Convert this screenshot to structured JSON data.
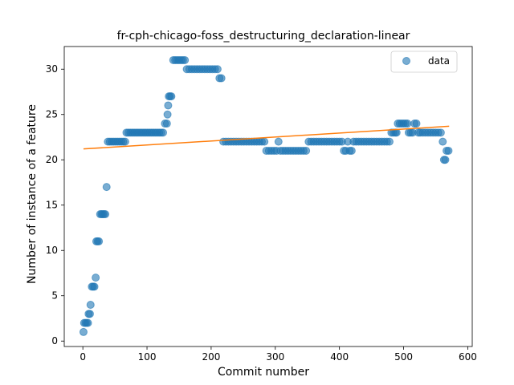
{
  "chart_data": {
    "type": "scatter",
    "title": "fr-cph-chicago-foss_destructuring_declaration-linear",
    "xlabel": "Commit number",
    "ylabel": "Number of instance of a feature",
    "xlim": [
      -29,
      607
    ],
    "ylim": [
      -0.6,
      32.5
    ],
    "xticks": [
      0,
      100,
      200,
      300,
      400,
      500,
      600
    ],
    "yticks": [
      0,
      5,
      10,
      15,
      20,
      25,
      30
    ],
    "legend": {
      "label": "data",
      "position": "top-right"
    },
    "colors": {
      "points": "#1f77b4",
      "fit": "#ff7f0e"
    },
    "series": [
      {
        "name": "data",
        "kind": "scatter",
        "points": [
          [
            1,
            1
          ],
          [
            2,
            2
          ],
          [
            4,
            2
          ],
          [
            6,
            2
          ],
          [
            8,
            2
          ],
          [
            9,
            3
          ],
          [
            11,
            3
          ],
          [
            12,
            4
          ],
          [
            14,
            6
          ],
          [
            16,
            6
          ],
          [
            18,
            6
          ],
          [
            20,
            7
          ],
          [
            21,
            11
          ],
          [
            23,
            11
          ],
          [
            25,
            11
          ],
          [
            27,
            14
          ],
          [
            29,
            14
          ],
          [
            31,
            14
          ],
          [
            33,
            14
          ],
          [
            35,
            14
          ],
          [
            37,
            17
          ],
          [
            39,
            22
          ],
          [
            42,
            22
          ],
          [
            45,
            22
          ],
          [
            48,
            22
          ],
          [
            51,
            22
          ],
          [
            54,
            22
          ],
          [
            57,
            22
          ],
          [
            60,
            22
          ],
          [
            63,
            22
          ],
          [
            66,
            22
          ],
          [
            68,
            23
          ],
          [
            71,
            23
          ],
          [
            74,
            23
          ],
          [
            77,
            23
          ],
          [
            80,
            23
          ],
          [
            83,
            23
          ],
          [
            86,
            23
          ],
          [
            89,
            23
          ],
          [
            92,
            23
          ],
          [
            95,
            23
          ],
          [
            98,
            23
          ],
          [
            101,
            23
          ],
          [
            104,
            23
          ],
          [
            107,
            23
          ],
          [
            110,
            23
          ],
          [
            113,
            23
          ],
          [
            116,
            23
          ],
          [
            119,
            23
          ],
          [
            122,
            23
          ],
          [
            125,
            23
          ],
          [
            128,
            24
          ],
          [
            131,
            24
          ],
          [
            132,
            25
          ],
          [
            133,
            26
          ],
          [
            134,
            27
          ],
          [
            136,
            27
          ],
          [
            138,
            27
          ],
          [
            141,
            31
          ],
          [
            144,
            31
          ],
          [
            147,
            31
          ],
          [
            150,
            31
          ],
          [
            153,
            31
          ],
          [
            156,
            31
          ],
          [
            159,
            31
          ],
          [
            162,
            30
          ],
          [
            166,
            30
          ],
          [
            170,
            30
          ],
          [
            174,
            30
          ],
          [
            178,
            30
          ],
          [
            182,
            30
          ],
          [
            186,
            30
          ],
          [
            190,
            30
          ],
          [
            194,
            30
          ],
          [
            198,
            30
          ],
          [
            202,
            30
          ],
          [
            206,
            30
          ],
          [
            210,
            30
          ],
          [
            213,
            29
          ],
          [
            216,
            29
          ],
          [
            219,
            22
          ],
          [
            223,
            22
          ],
          [
            227,
            22
          ],
          [
            231,
            22
          ],
          [
            235,
            22
          ],
          [
            239,
            22
          ],
          [
            243,
            22
          ],
          [
            247,
            22
          ],
          [
            251,
            22
          ],
          [
            255,
            22
          ],
          [
            259,
            22
          ],
          [
            263,
            22
          ],
          [
            267,
            22
          ],
          [
            271,
            22
          ],
          [
            275,
            22
          ],
          [
            279,
            22
          ],
          [
            283,
            22
          ],
          [
            286,
            21
          ],
          [
            290,
            21
          ],
          [
            294,
            21
          ],
          [
            298,
            21
          ],
          [
            302,
            21
          ],
          [
            305,
            22
          ],
          [
            308,
            21
          ],
          [
            312,
            21
          ],
          [
            316,
            21
          ],
          [
            320,
            21
          ],
          [
            324,
            21
          ],
          [
            328,
            21
          ],
          [
            332,
            21
          ],
          [
            336,
            21
          ],
          [
            340,
            21
          ],
          [
            344,
            21
          ],
          [
            348,
            21
          ],
          [
            352,
            22
          ],
          [
            356,
            22
          ],
          [
            360,
            22
          ],
          [
            364,
            22
          ],
          [
            368,
            22
          ],
          [
            372,
            22
          ],
          [
            376,
            22
          ],
          [
            380,
            22
          ],
          [
            384,
            22
          ],
          [
            388,
            22
          ],
          [
            392,
            22
          ],
          [
            396,
            22
          ],
          [
            400,
            22
          ],
          [
            404,
            22
          ],
          [
            407,
            21
          ],
          [
            410,
            21
          ],
          [
            413,
            22
          ],
          [
            416,
            21
          ],
          [
            419,
            21
          ],
          [
            422,
            22
          ],
          [
            426,
            22
          ],
          [
            430,
            22
          ],
          [
            434,
            22
          ],
          [
            438,
            22
          ],
          [
            442,
            22
          ],
          [
            446,
            22
          ],
          [
            450,
            22
          ],
          [
            454,
            22
          ],
          [
            458,
            22
          ],
          [
            462,
            22
          ],
          [
            466,
            22
          ],
          [
            470,
            22
          ],
          [
            474,
            22
          ],
          [
            478,
            22
          ],
          [
            481,
            23
          ],
          [
            484,
            23
          ],
          [
            487,
            23
          ],
          [
            489,
            23
          ],
          [
            491,
            24
          ],
          [
            494,
            24
          ],
          [
            497,
            24
          ],
          [
            500,
            24
          ],
          [
            503,
            24
          ],
          [
            506,
            24
          ],
          [
            508,
            23
          ],
          [
            511,
            23
          ],
          [
            514,
            23
          ],
          [
            517,
            24
          ],
          [
            520,
            24
          ],
          [
            523,
            23
          ],
          [
            526,
            23
          ],
          [
            530,
            23
          ],
          [
            534,
            23
          ],
          [
            538,
            23
          ],
          [
            542,
            23
          ],
          [
            546,
            23
          ],
          [
            550,
            23
          ],
          [
            554,
            23
          ],
          [
            558,
            23
          ],
          [
            561,
            22
          ],
          [
            563,
            20
          ],
          [
            565,
            20
          ],
          [
            567,
            21
          ],
          [
            570,
            21
          ]
        ]
      },
      {
        "name": "linear fit",
        "kind": "line",
        "points": [
          [
            1,
            21.2
          ],
          [
            571,
            23.7
          ]
        ]
      }
    ]
  }
}
